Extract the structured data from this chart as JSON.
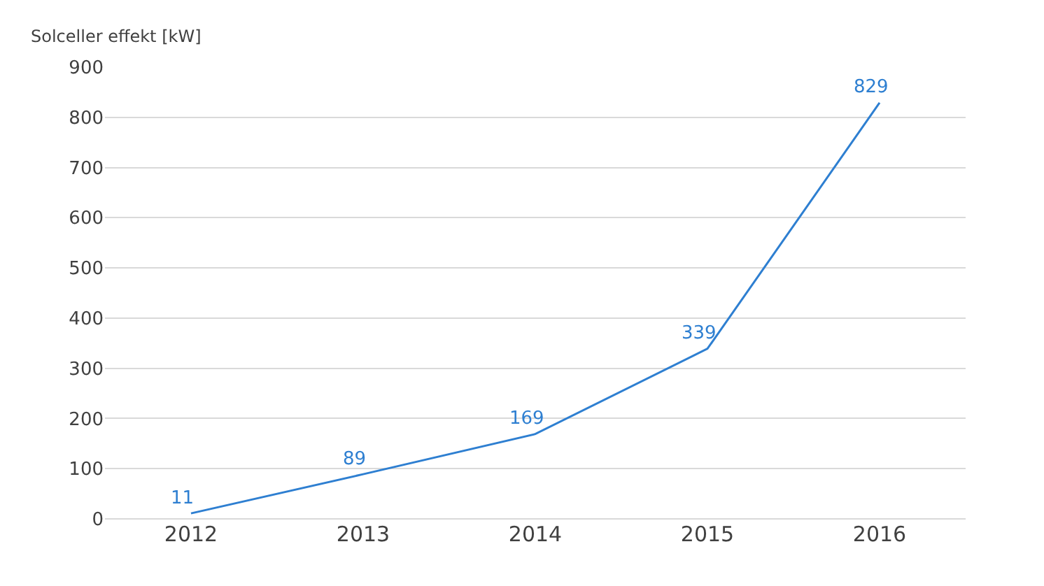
{
  "chart_data": {
    "type": "line",
    "ylabel": "Solceller effekt [kW]",
    "categories": [
      "2012",
      "2013",
      "2014",
      "2015",
      "2016"
    ],
    "series": [
      {
        "color": "#2e7fd1",
        "values": [
          11,
          89,
          169,
          339,
          829
        ]
      }
    ],
    "ylim": [
      0,
      900
    ],
    "yticks": [
      0,
      100,
      200,
      300,
      400,
      500,
      600,
      700,
      800,
      900
    ],
    "grid": "y",
    "data_labels": true,
    "line_style": "solid"
  }
}
